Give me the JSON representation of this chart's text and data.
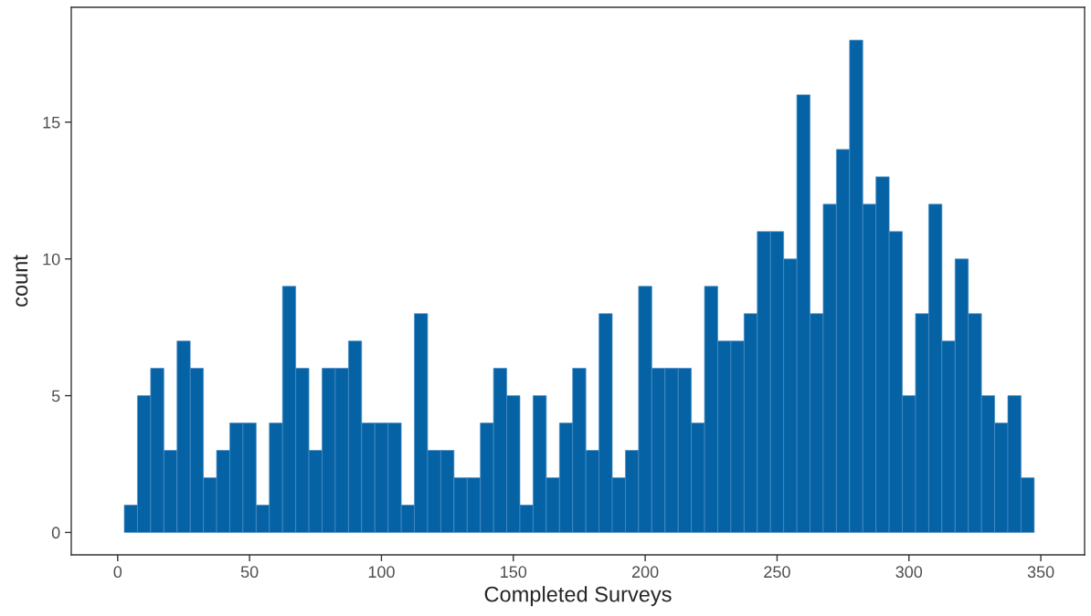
{
  "chart_data": {
    "type": "histogram",
    "xlabel": "Completed Surveys",
    "ylabel": "count",
    "color": "#0563a5",
    "bins": [
      2.5,
      7.5,
      12.5,
      17.5,
      22.5,
      27.5,
      32.5,
      37.5,
      42.5,
      47.5,
      52.5,
      57.5,
      62.5,
      67.5,
      72.5,
      77.5,
      82.5,
      87.5,
      92.5,
      97.5,
      102.5,
      107.5,
      112.5,
      117.5,
      122.5,
      127.5,
      132.5,
      137.5,
      142.5,
      147.5,
      152.5,
      157.5,
      162.5,
      167.5,
      172.5,
      177.5,
      182.5,
      187.5,
      192.5,
      197.5,
      202.5,
      207.5,
      212.5,
      217.5,
      222.5,
      227.5,
      232.5,
      237.5,
      242.5,
      247.5,
      252.5,
      257.5,
      262.5,
      267.5,
      272.5,
      277.5,
      282.5,
      287.5,
      292.5,
      297.5,
      302.5,
      307.5,
      312.5,
      317.5,
      322.5,
      327.5,
      332.5,
      337.5,
      342.5,
      347.5
    ],
    "values": [
      1,
      5,
      6,
      3,
      7,
      6,
      2,
      3,
      4,
      4,
      1,
      4,
      9,
      6,
      3,
      6,
      6,
      7,
      4,
      4,
      4,
      1,
      8,
      3,
      3,
      2,
      2,
      4,
      6,
      5,
      1,
      5,
      2,
      4,
      6,
      3,
      8,
      2,
      3,
      9,
      6,
      6,
      6,
      4,
      9,
      7,
      7,
      8,
      11,
      11,
      10,
      16,
      8,
      12,
      14,
      18,
      12,
      13,
      11,
      5,
      8,
      12,
      7,
      10,
      8,
      5,
      4,
      5,
      2
    ],
    "xlim": [
      -17.6,
      366.6
    ],
    "ylim": [
      -0.82,
      19.2
    ],
    "xticks": [
      0,
      50,
      100,
      150,
      200,
      250,
      300,
      350
    ],
    "yticks": [
      0,
      5,
      10,
      15
    ],
    "grid": false
  }
}
